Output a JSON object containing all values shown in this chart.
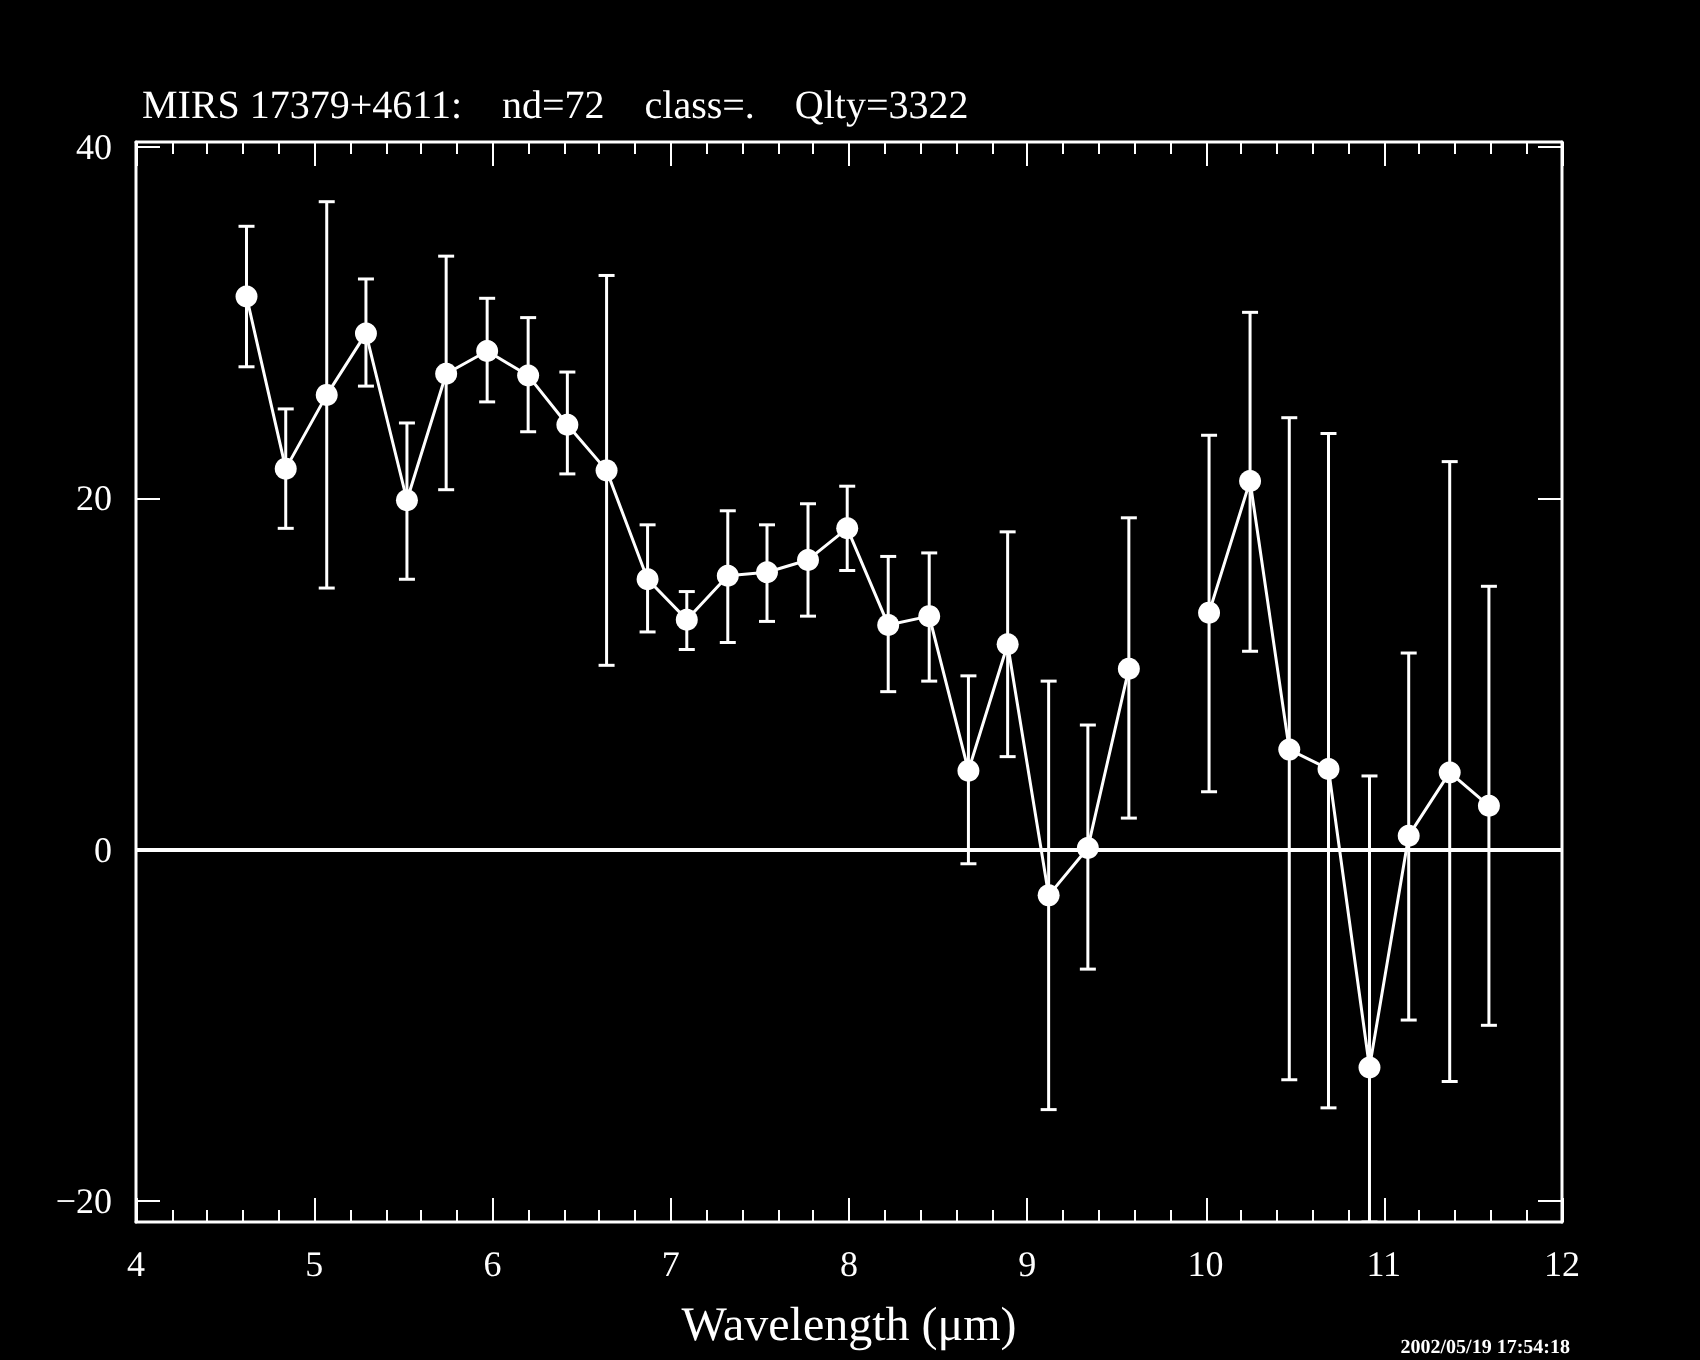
{
  "chart_data": {
    "type": "line",
    "title": "MIRS 17379+4611:    nd=72    class=.    Qlty=3322",
    "xlabel": "Wavelength (μm)",
    "x": [
      4.62,
      4.84,
      5.07,
      5.29,
      5.52,
      5.74,
      5.97,
      6.2,
      6.42,
      6.64,
      6.87,
      7.09,
      7.32,
      7.54,
      7.77,
      7.99,
      8.22,
      8.45,
      8.67,
      8.89,
      9.12,
      9.34,
      9.57,
      9.79,
      10.02,
      10.25,
      10.47,
      10.69,
      10.92,
      11.14,
      11.37,
      11.59
    ],
    "values": [
      31.5,
      21.7,
      25.9,
      29.4,
      19.9,
      27.1,
      28.4,
      27.0,
      24.2,
      21.6,
      15.4,
      13.1,
      15.6,
      15.8,
      16.5,
      18.3,
      12.8,
      13.3,
      4.5,
      11.7,
      -2.6,
      0.1,
      10.3,
      null,
      13.5,
      21.0,
      5.7,
      4.6,
      -12.4,
      0.8,
      4.4,
      2.5
    ],
    "errors": [
      [
        27.5,
        35.5
      ],
      [
        18.3,
        25.1
      ],
      [
        14.9,
        36.9
      ],
      [
        26.4,
        32.5
      ],
      [
        15.4,
        24.3
      ],
      [
        20.5,
        33.8
      ],
      [
        25.5,
        31.4
      ],
      [
        23.8,
        30.3
      ],
      [
        21.4,
        27.2
      ],
      [
        10.5,
        32.7
      ],
      [
        12.4,
        18.5
      ],
      [
        11.4,
        14.7
      ],
      [
        11.8,
        19.3
      ],
      [
        13.0,
        18.5
      ],
      [
        13.3,
        19.7
      ],
      [
        15.9,
        20.7
      ],
      [
        9.0,
        16.7
      ],
      [
        9.6,
        16.9
      ],
      [
        -0.8,
        9.9
      ],
      [
        5.3,
        18.1
      ],
      [
        -14.8,
        9.6
      ],
      [
        -6.8,
        7.1
      ],
      [
        1.8,
        18.9
      ],
      null,
      [
        3.3,
        23.6
      ],
      [
        11.3,
        30.6
      ],
      [
        -13.1,
        24.6
      ],
      [
        -14.7,
        23.7
      ],
      [
        -21.2,
        4.2
      ],
      [
        -9.7,
        11.2
      ],
      [
        -13.2,
        22.1
      ],
      [
        -10.0,
        15.0
      ]
    ],
    "color": "#ffffff",
    "marker": "circle",
    "line_style": "solid",
    "grid": false,
    "legend": false,
    "xlim": [
      4,
      12
    ],
    "xticks": [
      4,
      5,
      6,
      7,
      8,
      9,
      10,
      11,
      12
    ],
    "ylim": [
      -21.2,
      40.3
    ],
    "yticks": [
      -20,
      0,
      20,
      40
    ],
    "ref_lines": [
      {
        "axis": "y",
        "value": 0,
        "color": "#ffffff",
        "line_style": "solid"
      }
    ],
    "annotations": [
      "2002/05/19 17:54:18"
    ]
  }
}
